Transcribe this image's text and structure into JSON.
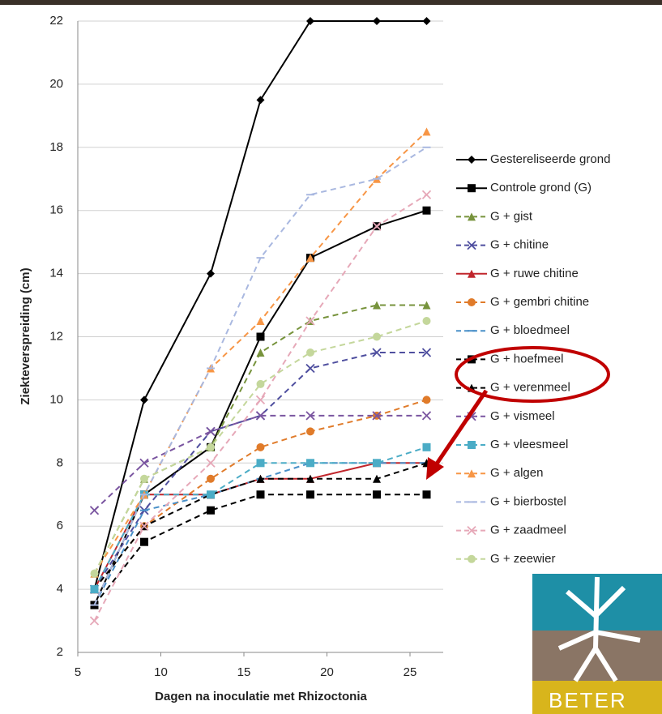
{
  "chart_data": {
    "type": "line",
    "x_label": "Dagen na inoculatie met Rhizoctonia",
    "y_label": "Ziekteverspreiding (cm)",
    "x": [
      6,
      9,
      13,
      16,
      19,
      23,
      26
    ],
    "xlim": [
      5,
      27
    ],
    "xticks": [
      5,
      10,
      15,
      20,
      25
    ],
    "ylim": [
      2,
      22
    ],
    "yticks": [
      2,
      4,
      6,
      8,
      10,
      12,
      14,
      16,
      18,
      20,
      22
    ],
    "grid": true,
    "legend": "right",
    "series": [
      {
        "name": "Gestereliseerde grond",
        "color": "#000000",
        "marker": "diamond",
        "dashed": false,
        "values": [
          4,
          10,
          14,
          19.5,
          22,
          22,
          22
        ]
      },
      {
        "name": "Controle grond (G)",
        "color": "#000000",
        "marker": "square",
        "dashed": false,
        "values": [
          3.5,
          7,
          8.5,
          12,
          14.5,
          15.5,
          16
        ]
      },
      {
        "name": "G + gist",
        "color": "#77933c",
        "marker": "triangle",
        "dashed": true,
        "values": [
          4.5,
          7.5,
          8.5,
          11.5,
          12.5,
          13,
          13
        ]
      },
      {
        "name": "G + chitine",
        "color": "#4f4f9f",
        "marker": "x",
        "dashed": true,
        "values": [
          4,
          6.5,
          9,
          9.5,
          11,
          11.5,
          11.5
        ]
      },
      {
        "name": "G + ruwe chitine",
        "color": "#c0262c",
        "marker": "triangle",
        "dashed": false,
        "values": [
          4,
          7,
          7,
          7.5,
          7.5,
          8,
          8
        ]
      },
      {
        "name": "G + gembri chitine",
        "color": "#e07b2a",
        "marker": "circle",
        "dashed": true,
        "values": [
          4,
          6,
          7.5,
          8.5,
          9,
          9.5,
          10
        ]
      },
      {
        "name": "G + bloedmeel",
        "color": "#4a90c8",
        "marker": "dash",
        "dashed": true,
        "values": [
          3.5,
          6.5,
          7,
          7.5,
          8,
          8,
          8
        ]
      },
      {
        "name": "G + hoefmeel",
        "color": "#000000",
        "marker": "square",
        "dashed": true,
        "values": [
          3.5,
          5.5,
          6.5,
          7,
          7,
          7,
          7
        ]
      },
      {
        "name": "G + verenmeel",
        "color": "#000000",
        "marker": "triangle",
        "dashed": true,
        "values": [
          4,
          6,
          7,
          7.5,
          7.5,
          7.5,
          8
        ]
      },
      {
        "name": "G + vismeel",
        "color": "#7a55a0",
        "marker": "x",
        "dashed": true,
        "values": [
          6.5,
          8,
          9,
          9.5,
          9.5,
          9.5,
          9.5
        ]
      },
      {
        "name": "G + vleesmeel",
        "color": "#4bacc6",
        "marker": "square",
        "dashed": true,
        "values": [
          4,
          7,
          7,
          8,
          8,
          8,
          8.5
        ]
      },
      {
        "name": "G + algen",
        "color": "#f79646",
        "marker": "triangle",
        "dashed": true,
        "values": [
          4.5,
          7,
          11,
          12.5,
          14.5,
          17,
          18.5
        ]
      },
      {
        "name": "G + bierbostel",
        "color": "#a9b8e0",
        "marker": "dash",
        "dashed": true,
        "values": [
          3.5,
          7,
          11,
          14.5,
          16.5,
          17,
          18
        ]
      },
      {
        "name": "G + zaadmeel",
        "color": "#e6a8b8",
        "marker": "x",
        "dashed": true,
        "values": [
          3,
          6,
          8,
          10,
          12.5,
          15.5,
          16.5
        ]
      },
      {
        "name": "G + zeewier",
        "color": "#c4d79b",
        "marker": "circle",
        "dashed": true,
        "values": [
          4.5,
          7.5,
          8.5,
          10.5,
          11.5,
          12,
          12.5
        ]
      }
    ]
  },
  "logo": {
    "text": "BETER"
  }
}
